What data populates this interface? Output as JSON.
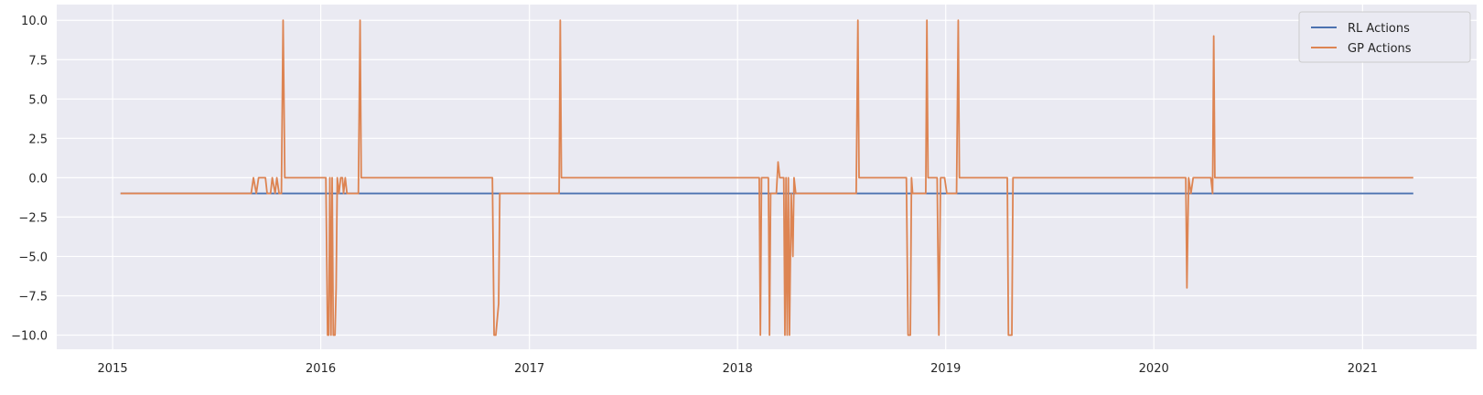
{
  "chart_data": {
    "type": "line",
    "title": "",
    "xlabel": "",
    "ylabel": "",
    "xlim": [
      "2014-09-25",
      "2021-07-20"
    ],
    "ylim": [
      -10.9,
      11.0
    ],
    "grid": true,
    "legend_position": "top-right",
    "background_color": "#eaeaf2",
    "x_tick_labels": [
      "2015",
      "2016",
      "2017",
      "2018",
      "2019",
      "2020",
      "2021"
    ],
    "y_tick_labels": [
      "10.0",
      "7.5",
      "5.0",
      "2.5",
      "0.0",
      "−2.5",
      "−5.0",
      "−7.5",
      "−10.0"
    ],
    "series": [
      {
        "name": "RL Actions",
        "color": "#4c72b0",
        "points": [
          [
            "2015-01-15",
            -1
          ],
          [
            "2021-03-31",
            -1
          ]
        ]
      },
      {
        "name": "GP Actions",
        "color": "#dd8452",
        "points": [
          [
            "2015-01-15",
            -1
          ],
          [
            "2015-09-01",
            -1
          ],
          [
            "2015-09-05",
            0
          ],
          [
            "2015-09-10",
            -1
          ],
          [
            "2015-09-14",
            0
          ],
          [
            "2015-09-26",
            0
          ],
          [
            "2015-09-29",
            -1
          ],
          [
            "2015-10-05",
            -1
          ],
          [
            "2015-10-08",
            0
          ],
          [
            "2015-10-13",
            -1
          ],
          [
            "2015-10-16",
            0
          ],
          [
            "2015-10-20",
            -1
          ],
          [
            "2015-10-24",
            -1
          ],
          [
            "2015-10-27",
            10
          ],
          [
            "2015-10-30",
            0
          ],
          [
            "2016-01-10",
            0
          ],
          [
            "2016-01-13",
            -10
          ],
          [
            "2016-01-15",
            -10
          ],
          [
            "2016-01-17",
            0
          ],
          [
            "2016-01-19",
            -10
          ],
          [
            "2016-01-21",
            0
          ],
          [
            "2016-01-23",
            -10
          ],
          [
            "2016-01-26",
            -10
          ],
          [
            "2016-01-28",
            -7
          ],
          [
            "2016-01-30",
            0
          ],
          [
            "2016-02-02",
            -1
          ],
          [
            "2016-02-05",
            0
          ],
          [
            "2016-02-08",
            0
          ],
          [
            "2016-02-10",
            -1
          ],
          [
            "2016-02-13",
            0
          ],
          [
            "2016-02-16",
            -1
          ],
          [
            "2016-03-07",
            -1
          ],
          [
            "2016-03-10",
            10
          ],
          [
            "2016-03-12",
            0
          ],
          [
            "2016-10-28",
            0
          ],
          [
            "2016-10-31",
            -10
          ],
          [
            "2016-11-03",
            -10
          ],
          [
            "2016-11-08",
            -8
          ],
          [
            "2016-11-10",
            -1
          ],
          [
            "2017-02-22",
            -1
          ],
          [
            "2017-02-24",
            10
          ],
          [
            "2017-02-26",
            0
          ],
          [
            "2018-02-08",
            0
          ],
          [
            "2018-02-10",
            -10
          ],
          [
            "2018-02-12",
            0
          ],
          [
            "2018-02-24",
            0
          ],
          [
            "2018-02-26",
            -10
          ],
          [
            "2018-02-28",
            -1
          ],
          [
            "2018-03-10",
            -1
          ],
          [
            "2018-03-13",
            1
          ],
          [
            "2018-03-16",
            0
          ],
          [
            "2018-03-23",
            0
          ],
          [
            "2018-03-25",
            -10
          ],
          [
            "2018-03-27",
            0
          ],
          [
            "2018-03-29",
            -10
          ],
          [
            "2018-03-31",
            0
          ],
          [
            "2018-04-02",
            -10
          ],
          [
            "2018-04-05",
            -1
          ],
          [
            "2018-04-08",
            -5
          ],
          [
            "2018-04-10",
            0
          ],
          [
            "2018-04-13",
            -1
          ],
          [
            "2018-07-28",
            -1
          ],
          [
            "2018-07-31",
            10
          ],
          [
            "2018-08-02",
            0
          ],
          [
            "2018-10-24",
            0
          ],
          [
            "2018-10-27",
            -10
          ],
          [
            "2018-10-31",
            -10
          ],
          [
            "2018-11-02",
            0
          ],
          [
            "2018-11-04",
            -1
          ],
          [
            "2018-11-27",
            -1
          ],
          [
            "2018-11-29",
            10
          ],
          [
            "2018-12-01",
            0
          ],
          [
            "2018-12-17",
            0
          ],
          [
            "2018-12-20",
            -10
          ],
          [
            "2018-12-23",
            0
          ],
          [
            "2018-12-30",
            0
          ],
          [
            "2019-01-03",
            -1
          ],
          [
            "2019-01-20",
            -1
          ],
          [
            "2019-01-23",
            10
          ],
          [
            "2019-01-25",
            0
          ],
          [
            "2019-04-19",
            0
          ],
          [
            "2019-04-21",
            -10
          ],
          [
            "2019-04-27",
            -10
          ],
          [
            "2019-04-29",
            0
          ],
          [
            "2020-02-26",
            0
          ],
          [
            "2020-02-28",
            -7
          ],
          [
            "2020-03-02",
            0
          ],
          [
            "2020-03-06",
            -1
          ],
          [
            "2020-03-10",
            0
          ],
          [
            "2020-04-10",
            0
          ],
          [
            "2020-04-13",
            -1
          ],
          [
            "2020-04-15",
            9
          ],
          [
            "2020-04-17",
            0
          ],
          [
            "2021-03-31",
            0
          ]
        ]
      }
    ]
  }
}
